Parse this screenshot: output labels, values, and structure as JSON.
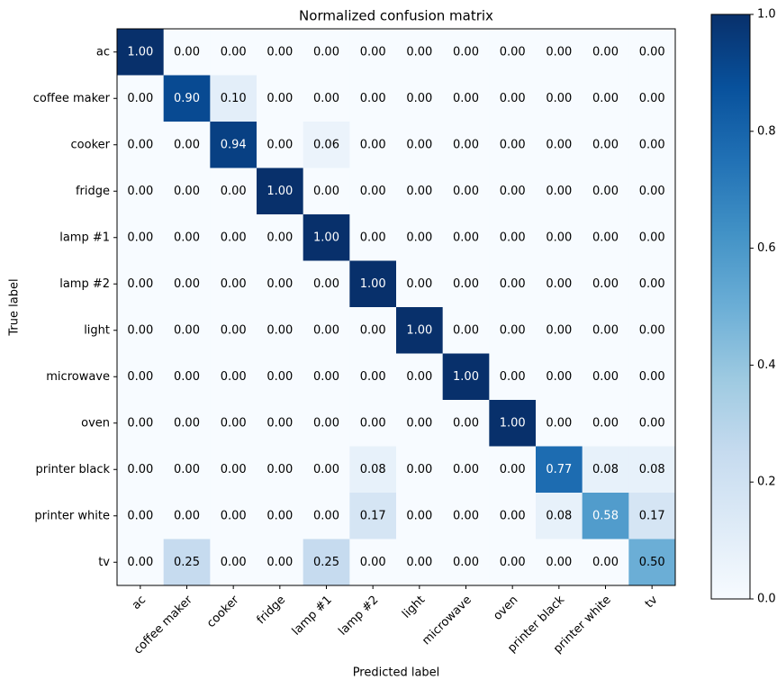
{
  "chart_data": {
    "type": "heatmap",
    "title": "Normalized confusion matrix",
    "xlabel": "Predicted label",
    "ylabel": "True label",
    "x_categories": [
      "ac",
      "coffee maker",
      "cooker",
      "fridge",
      "lamp #1",
      "lamp #2",
      "light",
      "microwave",
      "oven",
      "printer black",
      "printer white",
      "tv"
    ],
    "y_categories": [
      "ac",
      "coffee maker",
      "cooker",
      "fridge",
      "lamp #1",
      "lamp #2",
      "light",
      "microwave",
      "oven",
      "printer black",
      "printer white",
      "tv"
    ],
    "values": [
      [
        1,
        0,
        0,
        0,
        0,
        0,
        0,
        0,
        0,
        0,
        0,
        0
      ],
      [
        0,
        0.9,
        0.1,
        0,
        0,
        0,
        0,
        0,
        0,
        0,
        0,
        0
      ],
      [
        0,
        0,
        0.94,
        0,
        0.06,
        0,
        0,
        0,
        0,
        0,
        0,
        0
      ],
      [
        0,
        0,
        0,
        1,
        0,
        0,
        0,
        0,
        0,
        0,
        0,
        0
      ],
      [
        0,
        0,
        0,
        0,
        1,
        0,
        0,
        0,
        0,
        0,
        0,
        0
      ],
      [
        0,
        0,
        0,
        0,
        0,
        1,
        0,
        0,
        0,
        0,
        0,
        0
      ],
      [
        0,
        0,
        0,
        0,
        0,
        0,
        1,
        0,
        0,
        0,
        0,
        0
      ],
      [
        0,
        0,
        0,
        0,
        0,
        0,
        0,
        1,
        0,
        0,
        0,
        0
      ],
      [
        0,
        0,
        0,
        0,
        0,
        0,
        0,
        0,
        1,
        0,
        0,
        0
      ],
      [
        0,
        0,
        0,
        0,
        0,
        0.08,
        0,
        0,
        0,
        0.77,
        0.08,
        0.08
      ],
      [
        0,
        0,
        0,
        0,
        0,
        0.17,
        0,
        0,
        0,
        0.08,
        0.58,
        0.17
      ],
      [
        0,
        0.25,
        0,
        0,
        0.25,
        0,
        0,
        0,
        0,
        0,
        0,
        0.5
      ]
    ],
    "value_labels": [
      [
        "1.00",
        "0.00",
        "0.00",
        "0.00",
        "0.00",
        "0.00",
        "0.00",
        "0.00",
        "0.00",
        "0.00",
        "0.00",
        "0.00"
      ],
      [
        "0.00",
        "0.90",
        "0.10",
        "0.00",
        "0.00",
        "0.00",
        "0.00",
        "0.00",
        "0.00",
        "0.00",
        "0.00",
        "0.00"
      ],
      [
        "0.00",
        "0.00",
        "0.94",
        "0.00",
        "0.06",
        "0.00",
        "0.00",
        "0.00",
        "0.00",
        "0.00",
        "0.00",
        "0.00"
      ],
      [
        "0.00",
        "0.00",
        "0.00",
        "1.00",
        "0.00",
        "0.00",
        "0.00",
        "0.00",
        "0.00",
        "0.00",
        "0.00",
        "0.00"
      ],
      [
        "0.00",
        "0.00",
        "0.00",
        "0.00",
        "1.00",
        "0.00",
        "0.00",
        "0.00",
        "0.00",
        "0.00",
        "0.00",
        "0.00"
      ],
      [
        "0.00",
        "0.00",
        "0.00",
        "0.00",
        "0.00",
        "1.00",
        "0.00",
        "0.00",
        "0.00",
        "0.00",
        "0.00",
        "0.00"
      ],
      [
        "0.00",
        "0.00",
        "0.00",
        "0.00",
        "0.00",
        "0.00",
        "1.00",
        "0.00",
        "0.00",
        "0.00",
        "0.00",
        "0.00"
      ],
      [
        "0.00",
        "0.00",
        "0.00",
        "0.00",
        "0.00",
        "0.00",
        "0.00",
        "1.00",
        "0.00",
        "0.00",
        "0.00",
        "0.00"
      ],
      [
        "0.00",
        "0.00",
        "0.00",
        "0.00",
        "0.00",
        "0.00",
        "0.00",
        "0.00",
        "1.00",
        "0.00",
        "0.00",
        "0.00"
      ],
      [
        "0.00",
        "0.00",
        "0.00",
        "0.00",
        "0.00",
        "0.08",
        "0.00",
        "0.00",
        "0.00",
        "0.77",
        "0.08",
        "0.08"
      ],
      [
        "0.00",
        "0.00",
        "0.00",
        "0.00",
        "0.00",
        "0.17",
        "0.00",
        "0.00",
        "0.00",
        "0.08",
        "0.58",
        "0.17"
      ],
      [
        "0.00",
        "0.25",
        "0.00",
        "0.00",
        "0.25",
        "0.00",
        "0.00",
        "0.00",
        "0.00",
        "0.00",
        "0.00",
        "0.50"
      ]
    ],
    "clim": [
      0,
      1
    ],
    "cticks": [
      {
        "value": 0,
        "label": "0.0"
      },
      {
        "value": 0.2,
        "label": "0.2"
      },
      {
        "value": 0.4,
        "label": "0.4"
      },
      {
        "value": 0.6,
        "label": "0.6"
      },
      {
        "value": 0.8,
        "label": "0.8"
      },
      {
        "value": 1,
        "label": "1.0"
      }
    ],
    "colormap": [
      "#f7fbff",
      "#deebf7",
      "#c6dbef",
      "#9ecae1",
      "#6baed6",
      "#4292c6",
      "#2171b5",
      "#08519c",
      "#08306b"
    ]
  }
}
